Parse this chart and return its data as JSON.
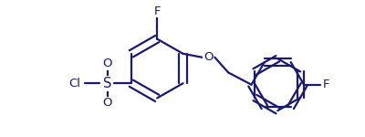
{
  "bg_color": "#ffffff",
  "line_color": "#1a1a6e",
  "line_width": 1.6,
  "font_size": 9.5,
  "fig_width": 4.0,
  "fig_height": 1.5,
  "dpi": 100,
  "xlim": [
    0,
    4.0
  ],
  "ylim": [
    0,
    1.5
  ]
}
